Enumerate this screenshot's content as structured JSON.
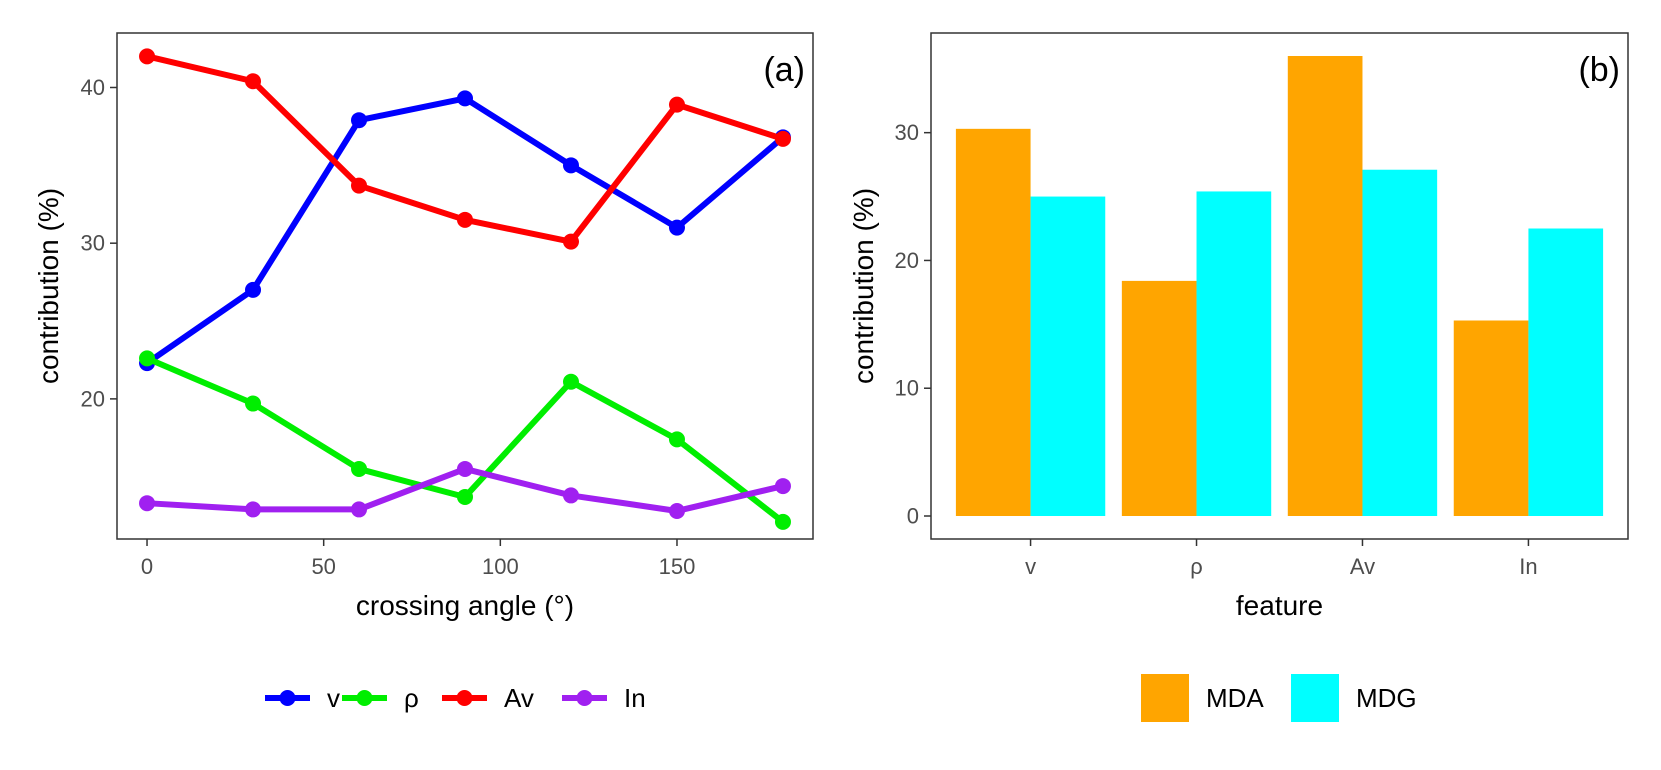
{
  "chart_data": [
    {
      "type": "line",
      "panel_label": "(a)",
      "xlabel": "crossing angle (°)",
      "ylabel": "contribution (%)",
      "x": [
        0,
        30,
        60,
        90,
        120,
        150,
        180
      ],
      "xlim": [
        -8.5,
        188.5
      ],
      "ylim": [
        11.0,
        43.5
      ],
      "xticks": [
        0,
        50,
        100,
        150
      ],
      "xtick_labels": [
        "0",
        "50",
        "100",
        "150"
      ],
      "yticks": [
        20,
        30,
        40
      ],
      "ytick_labels": [
        "20",
        "30",
        "40"
      ],
      "grid": false,
      "series": [
        {
          "name": "v",
          "color": "#0000ff",
          "values": [
            22.3,
            27.0,
            37.9,
            39.3,
            35.0,
            31.0,
            36.8
          ]
        },
        {
          "name": "ρ",
          "color": "#00ee00",
          "values": [
            22.6,
            19.7,
            15.5,
            13.7,
            21.1,
            17.4,
            12.1
          ]
        },
        {
          "name": "Av",
          "color": "#ff0000",
          "values": [
            42.0,
            40.4,
            33.7,
            31.5,
            30.1,
            38.9,
            36.7
          ]
        },
        {
          "name": "In",
          "color": "#a020f0",
          "values": [
            13.3,
            12.9,
            12.9,
            15.5,
            13.8,
            12.8,
            14.4
          ]
        }
      ],
      "legend_position": "bottom"
    },
    {
      "type": "bar",
      "panel_label": "(b)",
      "xlabel": "feature",
      "ylabel": "contribution (%)",
      "categories": [
        "v",
        "ρ",
        "Av",
        "In"
      ],
      "ylim": [
        -1.8,
        37.8
      ],
      "yticks": [
        0,
        10,
        20,
        30
      ],
      "ytick_labels": [
        "0",
        "10",
        "20",
        "30"
      ],
      "grid": false,
      "series": [
        {
          "name": "MDA",
          "color": "#ffa500",
          "values": [
            30.3,
            18.4,
            36.0,
            15.3
          ]
        },
        {
          "name": "MDG",
          "color": "#00ffff",
          "values": [
            25.0,
            25.4,
            27.1,
            22.5
          ]
        }
      ],
      "legend_position": "bottom"
    }
  ]
}
